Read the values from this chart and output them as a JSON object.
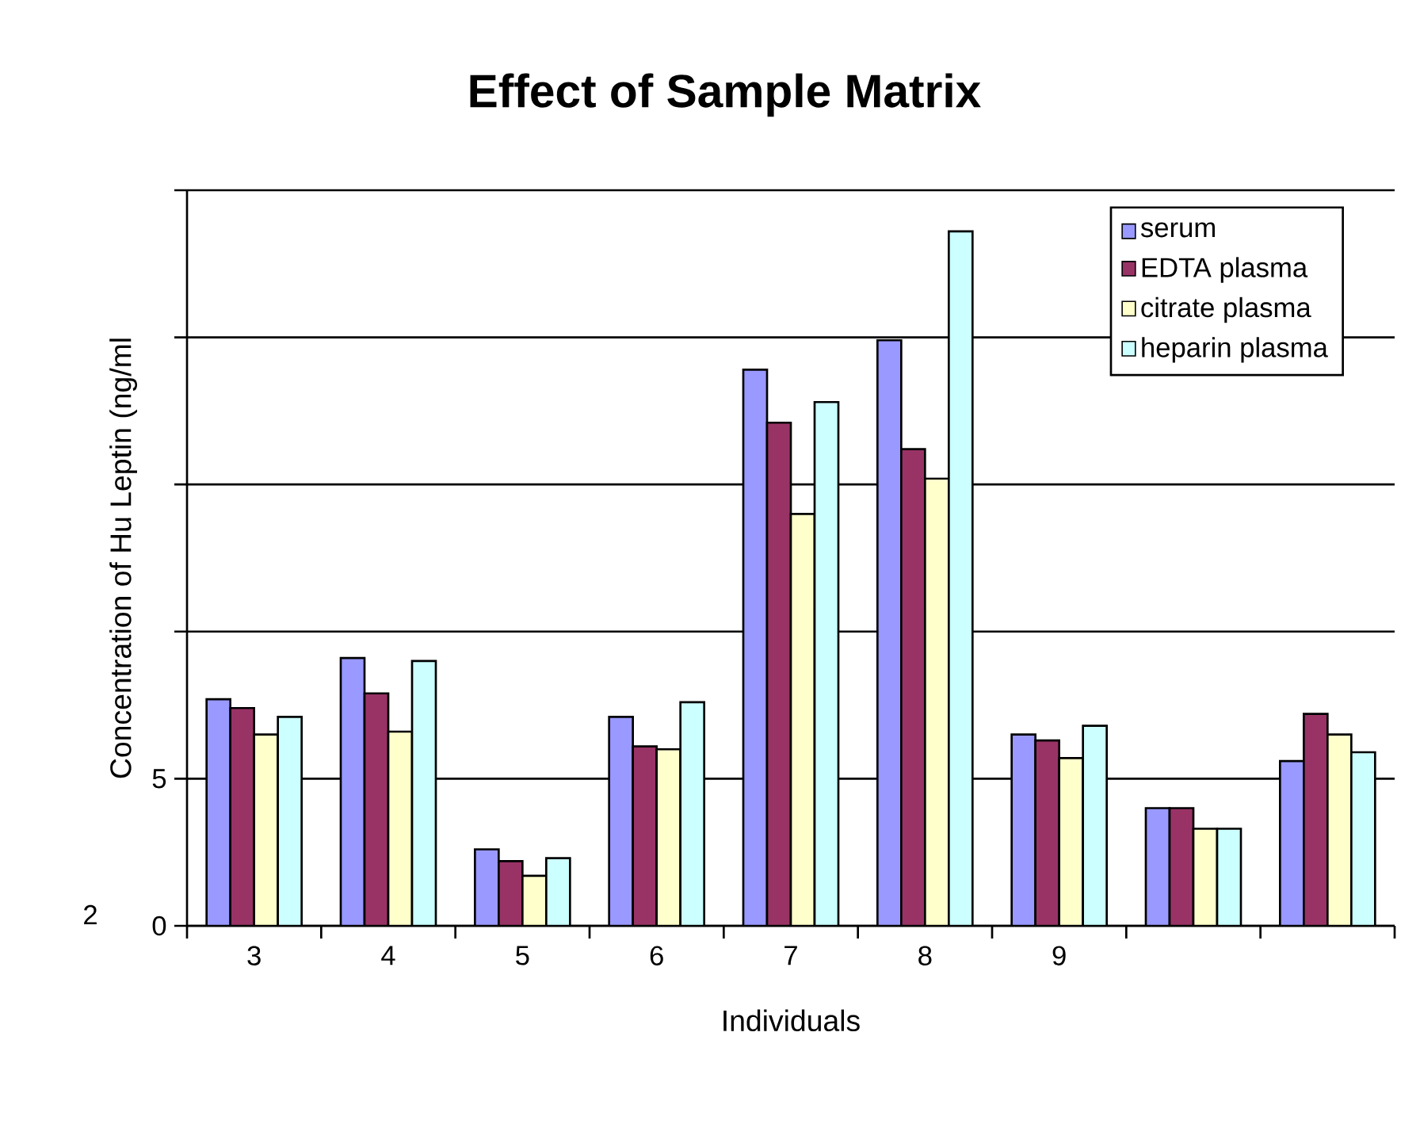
{
  "chart_data": {
    "type": "bar",
    "title": "Effect of Sample Matrix",
    "xlabel": "Individuals",
    "ylabel": "Concentration of Hu Leptin (ng/ml",
    "categories": [
      "3",
      "4",
      "5",
      "6",
      "7",
      "8",
      "9",
      null,
      null
    ],
    "series": [
      {
        "name": "serum",
        "color": "#9999ff",
        "values": [
          7.7,
          9.1,
          2.6,
          7.1,
          18.9,
          19.9,
          6.5,
          4.0,
          5.6
        ]
      },
      {
        "name": "EDTA plasma",
        "color": "#993366",
        "values": [
          7.4,
          7.9,
          2.2,
          6.1,
          17.1,
          16.2,
          6.3,
          4.0,
          7.2
        ]
      },
      {
        "name": "citrate plasma",
        "color": "#ffffcc",
        "values": [
          6.5,
          6.6,
          1.7,
          6.0,
          14.0,
          15.2,
          5.7,
          3.3,
          6.5
        ]
      },
      {
        "name": "heparin plasma",
        "color": "#ccffff",
        "values": [
          7.1,
          9.0,
          2.3,
          7.6,
          17.8,
          23.6,
          6.8,
          3.3,
          5.9
        ]
      }
    ],
    "ylim": [
      0,
      25
    ],
    "yticks": [
      0,
      5,
      {
        "value": 10,
        "label": null
      },
      {
        "value": 15,
        "label": null
      },
      {
        "value": 20,
        "label": null
      },
      {
        "value": 25,
        "label": null
      }
    ],
    "grid": "y",
    "legend": "top right",
    "annotations": [
      "2"
    ]
  }
}
